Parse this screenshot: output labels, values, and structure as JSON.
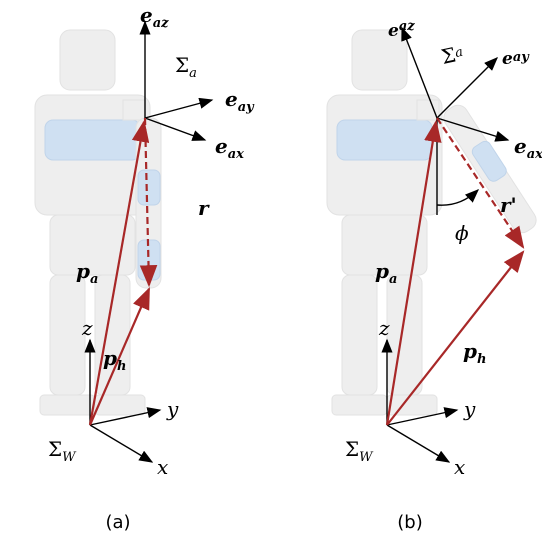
{
  "panels": [
    {
      "caption": "(a)",
      "frame_labels": {
        "e_az": {
          "base": "e",
          "sub": "az"
        },
        "sigma_a": {
          "base": "Σ",
          "sub": "a"
        },
        "e_ay": {
          "base": "e",
          "sub": "ay"
        },
        "e_ax": {
          "base": "e",
          "sub": "ax"
        }
      },
      "vector_labels": {
        "r": "r",
        "p_a": {
          "base": "p",
          "sub": "a"
        },
        "p_h": {
          "base": "p",
          "sub": "h"
        }
      },
      "world_labels": {
        "z": "z",
        "y": "y",
        "x": "x",
        "sigma_w": {
          "base": "Σ",
          "sub": "W"
        }
      }
    },
    {
      "caption": "(b)",
      "frame_labels": {
        "e_az": {
          "base": "e",
          "sub": "az"
        },
        "sigma_a": {
          "base": "Σ",
          "sub": "a"
        },
        "e_ay": {
          "base": "e",
          "sub": "ay"
        },
        "e_ax": {
          "base": "e",
          "sub": "ax"
        }
      },
      "vector_labels": {
        "r": "r'",
        "phi": "ϕ",
        "p_a": {
          "base": "p",
          "sub": "a"
        },
        "p_h": {
          "base": "p",
          "sub": "h"
        }
      },
      "world_labels": {
        "z": "z",
        "y": "y",
        "x": "x",
        "sigma_w": {
          "base": "Σ",
          "sub": "W"
        }
      }
    }
  ]
}
